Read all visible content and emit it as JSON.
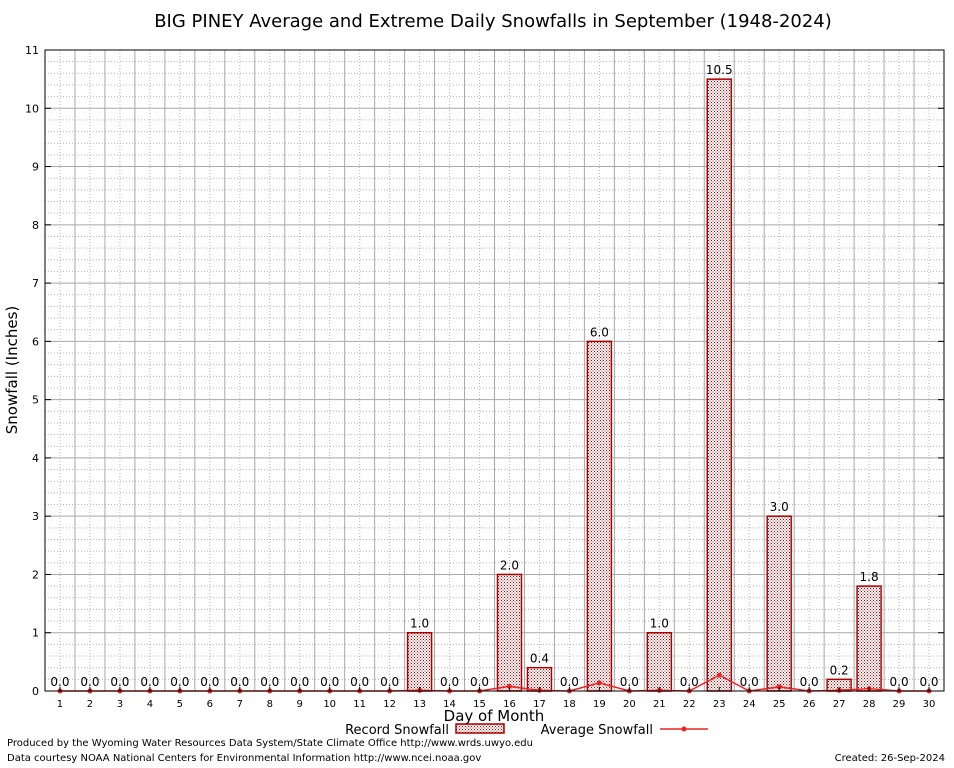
{
  "chart_data": {
    "type": "bar",
    "title": "BIG PINEY Average and Extreme Daily Snowfalls in September (1948-2024)",
    "xlabel": "Day of Month",
    "ylabel": "Snowfall (Inches)",
    "ylim": [
      0,
      11
    ],
    "yticks": [
      0,
      1,
      2,
      3,
      4,
      5,
      6,
      7,
      8,
      9,
      10,
      11
    ],
    "grid": true,
    "legend_position": "bottom",
    "categories": [
      "1",
      "2",
      "3",
      "4",
      "5",
      "6",
      "7",
      "8",
      "9",
      "10",
      "11",
      "12",
      "13",
      "14",
      "15",
      "16",
      "17",
      "18",
      "19",
      "20",
      "21",
      "22",
      "23",
      "24",
      "25",
      "26",
      "27",
      "28",
      "29",
      "30"
    ],
    "series": [
      {
        "name": "Record Snowfall",
        "kind": "bar",
        "color": "#aa0000",
        "values": [
          0,
          0,
          0,
          0,
          0,
          0,
          0,
          0,
          0,
          0,
          0,
          0,
          1.0,
          0,
          0,
          2.0,
          0.4,
          0,
          6.0,
          0,
          1.0,
          0,
          10.5,
          0,
          3.0,
          0,
          0.2,
          1.8,
          0,
          0
        ],
        "labels": [
          "0.0",
          "0.0",
          "0.0",
          "0.0",
          "0.0",
          "0.0",
          "0.0",
          "0.0",
          "0.0",
          "0.0",
          "0.0",
          "0.0",
          "1.0",
          "0.0",
          "0.0",
          "2.0",
          "0.4",
          "0.0",
          "6.0",
          "0.0",
          "1.0",
          "0.0",
          "10.5",
          "0.0",
          "3.0",
          "0.0",
          "0.2",
          "1.8",
          "0.0",
          "0.0"
        ]
      },
      {
        "name": "Average Snowfall",
        "kind": "line",
        "color": "#ee2222",
        "values": [
          0,
          0,
          0,
          0,
          0,
          0,
          0,
          0,
          0,
          0,
          0,
          0,
          0.01,
          0,
          0,
          0.08,
          0.01,
          0,
          0.14,
          0,
          0.01,
          0,
          0.27,
          0,
          0.07,
          0,
          0.01,
          0.04,
          0,
          0
        ]
      }
    ]
  },
  "footer": {
    "produced_by": "Produced by the Wyoming Water Resources Data System/State Climate Office http://www.wrds.uwyo.edu",
    "data_courtesy": "Data courtesy NOAA National Centers for Environmental Information http://www.ncei.noaa.gov",
    "created": "Created:  26-Sep-2024"
  }
}
